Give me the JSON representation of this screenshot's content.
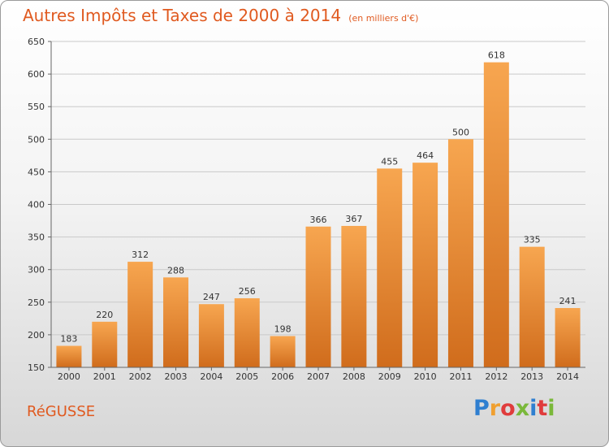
{
  "chart_data": {
    "type": "bar",
    "title": "Autres Impôts et Taxes de 2000 à 2014",
    "unit": "(en milliers d'€)",
    "categories": [
      "2000",
      "2001",
      "2002",
      "2003",
      "2004",
      "2005",
      "2006",
      "2007",
      "2008",
      "2009",
      "2010",
      "2011",
      "2012",
      "2013",
      "2014"
    ],
    "values": [
      183,
      220,
      312,
      288,
      247,
      256,
      198,
      366,
      367,
      455,
      464,
      500,
      618,
      335,
      241
    ],
    "ylim": [
      150,
      650
    ],
    "yticks": [
      150,
      200,
      250,
      300,
      350,
      400,
      450,
      500,
      550,
      600,
      650
    ],
    "xlabel": "",
    "ylabel": "",
    "grid": true
  },
  "commune": "RéGUSSE",
  "logo": {
    "letters": [
      "P",
      "r",
      "o",
      "x",
      "i",
      "t",
      "i"
    ],
    "colors": [
      "#2f7fd0",
      "#f0a030",
      "#e03c3c",
      "#7ab83a",
      "#2f7fd0",
      "#e03c3c",
      "#7ab83a"
    ]
  },
  "colors": {
    "accent": "#e05a20",
    "bar_light": "#f5a24d",
    "bar_dark": "#d4701f"
  }
}
